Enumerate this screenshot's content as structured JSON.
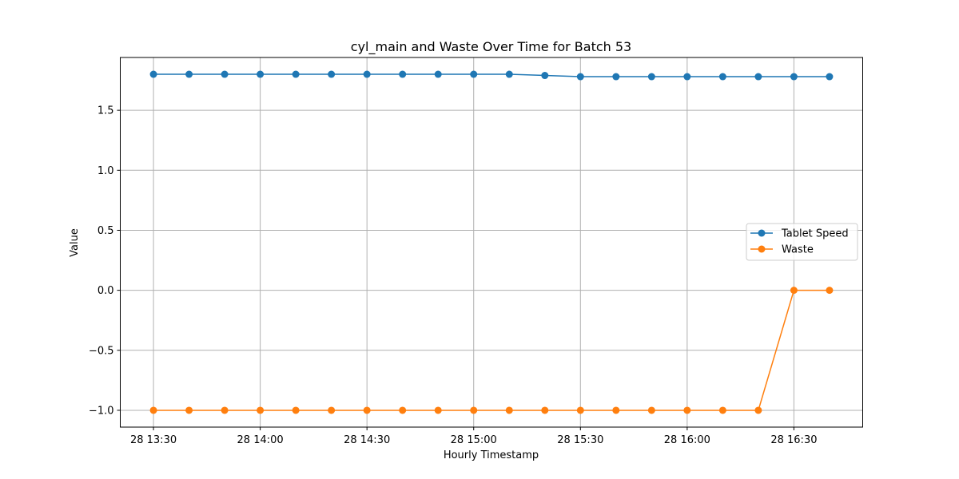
{
  "chart_data": {
    "type": "line",
    "title": "cyl_main and Waste Over Time for Batch 53",
    "xlabel": "Hourly Timestamp",
    "ylabel": "Value",
    "x": [
      "13:30",
      "13:40",
      "13:50",
      "14:00",
      "14:10",
      "14:20",
      "14:30",
      "14:40",
      "14:50",
      "15:00",
      "15:10",
      "15:20",
      "15:30",
      "15:40",
      "15:50",
      "16:00",
      "16:10",
      "16:20",
      "16:30",
      "16:40"
    ],
    "x_ticks": [
      {
        "time": "13:30",
        "label": "28 13:30"
      },
      {
        "time": "14:00",
        "label": "28 14:00"
      },
      {
        "time": "14:30",
        "label": "28 14:30"
      },
      {
        "time": "15:00",
        "label": "28 15:00"
      },
      {
        "time": "15:30",
        "label": "28 15:30"
      },
      {
        "time": "16:00",
        "label": "28 16:00"
      },
      {
        "time": "16:30",
        "label": "28 16:30"
      }
    ],
    "y_ticks": [
      {
        "value": 1.5,
        "label": "1.5"
      },
      {
        "value": 1.0,
        "label": "1.0"
      },
      {
        "value": 0.5,
        "label": "0.5"
      },
      {
        "value": 0.0,
        "label": "0.0"
      },
      {
        "value": -0.5,
        "label": "−0.5"
      },
      {
        "value": -1.0,
        "label": "−1.0"
      }
    ],
    "ylim": [
      -1.14,
      1.94
    ],
    "xlim": [
      "13:20:40",
      "16:49:20"
    ],
    "grid": true,
    "legend_position": "center-right",
    "series": [
      {
        "name": "Tablet Speed",
        "color": "#1f77b4",
        "values": [
          1.8,
          1.8,
          1.8,
          1.8,
          1.8,
          1.8,
          1.8,
          1.8,
          1.8,
          1.8,
          1.8,
          1.79,
          1.78,
          1.78,
          1.78,
          1.78,
          1.78,
          1.78,
          1.78,
          1.78
        ]
      },
      {
        "name": "Waste",
        "color": "#ff7f0e",
        "values": [
          -1,
          -1,
          -1,
          -1,
          -1,
          -1,
          -1,
          -1,
          -1,
          -1,
          -1,
          -1,
          -1,
          -1,
          -1,
          -1,
          -1,
          -1,
          0,
          0
        ]
      }
    ]
  }
}
